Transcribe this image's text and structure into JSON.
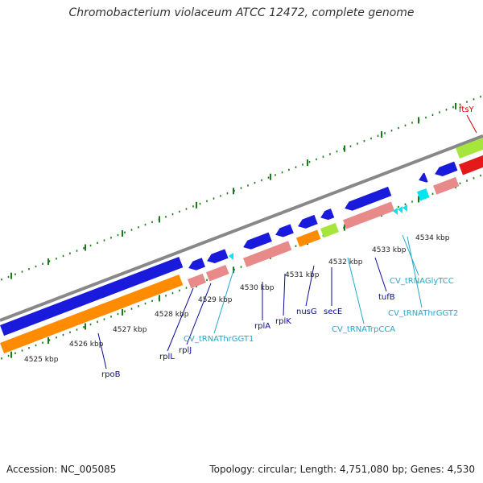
{
  "title": "Chromobacterium violaceum ATCC 12472, complete genome",
  "footer": {
    "accession": "Accession: NC_005085",
    "summary": "Topology: circular; Length: 4,751,080 bp; Genes: 4,530"
  },
  "colors": {
    "cds": "#1a1adc",
    "gene_orange": "#ff8c00",
    "gene_pink": "#e88a8a",
    "gene_green": "#a6e63c",
    "gene_red": "#e41a1a",
    "gene_magenta": "#e0207e",
    "gene_cyan": "#00e5ee",
    "trna_label": "#22aacc",
    "cds_label": "#0a0a99",
    "highlight_label": "#cc0000",
    "tick_green": "#1a7a1a",
    "backbone": "#888888"
  },
  "kbp_ticks": [
    "4525 kbp",
    "4526 kbp",
    "4527 kbp",
    "4528 kbp",
    "4529 kbp",
    "4530 kbp",
    "4531 kbp",
    "4532 kbp",
    "4533 kbp",
    "4534 kbp"
  ],
  "gene_labels": [
    {
      "text": "ftsY",
      "kind": "highlight"
    },
    {
      "text": "rpoB",
      "kind": "cds"
    },
    {
      "text": "rplL",
      "kind": "cds"
    },
    {
      "text": "rplJ",
      "kind": "cds"
    },
    {
      "text": "CV_tRNAThrGGT1",
      "kind": "trna"
    },
    {
      "text": "rplA",
      "kind": "cds"
    },
    {
      "text": "rplK",
      "kind": "cds"
    },
    {
      "text": "nusG",
      "kind": "cds"
    },
    {
      "text": "secE",
      "kind": "cds"
    },
    {
      "text": "CV_tRNATrpCCA",
      "kind": "trna"
    },
    {
      "text": "tufB",
      "kind": "cds"
    },
    {
      "text": "CV_tRNAGlyTCC",
      "kind": "trna"
    },
    {
      "text": "CV_tRNAThrGGT2",
      "kind": "trna"
    }
  ]
}
